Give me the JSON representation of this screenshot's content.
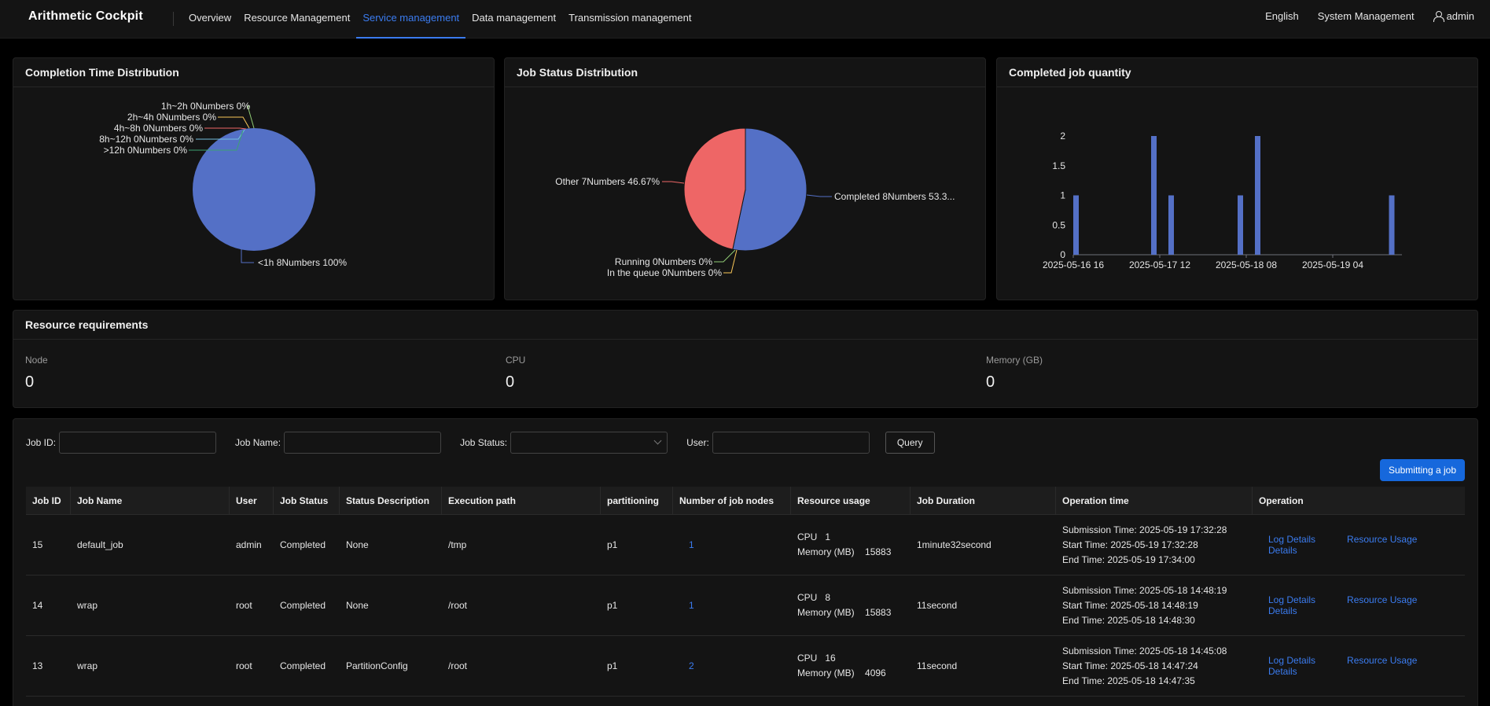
{
  "brand": "Arithmetic Cockpit",
  "nav": [
    {
      "label": "Overview",
      "active": false
    },
    {
      "label": "Resource Management",
      "active": false
    },
    {
      "label": "Service management",
      "active": true
    },
    {
      "label": "Data management",
      "active": false
    },
    {
      "label": "Transmission management",
      "active": false
    }
  ],
  "top_right": {
    "language": "English",
    "system": "System Management",
    "user": "admin",
    "user_icon": "user-icon"
  },
  "colors": {
    "accent": "#3b7cf0",
    "pie_blue": "#5470c6",
    "pie_red": "#ee6666",
    "pie_green": "#91cc75",
    "pie_yellow": "#fac858"
  },
  "completion_card": {
    "title": "Completion Time Distribution"
  },
  "status_card": {
    "title": "Job Status Distribution"
  },
  "quantity_card": {
    "title": "Completed job quantity"
  },
  "chart_data": [
    {
      "type": "pie",
      "title": "Completion Time Distribution",
      "slices": [
        {
          "label": "<1h 8Numbers 100%",
          "value": 8
        },
        {
          "label": "1h~2h 0Numbers 0%",
          "value": 0
        },
        {
          "label": "2h~4h 0Numbers 0%",
          "value": 0
        },
        {
          "label": "4h~8h 0Numbers 0%",
          "value": 0
        },
        {
          "label": "8h~12h 0Numbers 0%",
          "value": 0
        },
        {
          "label": ">12h 0Numbers 0%",
          "value": 0
        }
      ]
    },
    {
      "type": "pie",
      "title": "Job Status Distribution",
      "slices": [
        {
          "label": "Completed 8Numbers 53.3...",
          "value": 8
        },
        {
          "label": "Running 0Numbers 0%",
          "value": 0
        },
        {
          "label": "In the queue 0Numbers 0%",
          "value": 0
        },
        {
          "label": "Other 7Numbers 46.67%",
          "value": 7
        }
      ]
    },
    {
      "type": "bar",
      "title": "Completed job quantity",
      "xlabel": "",
      "ylabel": "",
      "xticks": [
        "2025-05-16 16",
        "2025-05-17 12",
        "2025-05-18 08",
        "2025-05-19 04"
      ],
      "yticks": [
        "0",
        "0.5",
        "1",
        "1.5",
        "2"
      ],
      "ylim": [
        0,
        2
      ],
      "x_range": [
        "2025-05-16 16:00",
        "2025-05-19 20:00"
      ],
      "bars": [
        {
          "x": "2025-05-16 16:00",
          "value": 1
        },
        {
          "x": "2025-05-17 10:00",
          "value": 2
        },
        {
          "x": "2025-05-17 14:00",
          "value": 1
        },
        {
          "x": "2025-05-18 06:00",
          "value": 1
        },
        {
          "x": "2025-05-18 10:00",
          "value": 2
        },
        {
          "x": "2025-05-19 17:00",
          "value": 1
        }
      ]
    }
  ],
  "resources": {
    "title": "Resource requirements",
    "items": [
      {
        "label": "Node",
        "value": "0"
      },
      {
        "label": "CPU",
        "value": "0"
      },
      {
        "label": "Memory (GB)",
        "value": "0"
      }
    ]
  },
  "filters": {
    "job_id_label": "Job ID",
    "job_name_label": "Job Name",
    "job_status_label": "Job Status",
    "user_label": "User",
    "query_label": "Query",
    "submit_label": "Submitting a job"
  },
  "table": {
    "headers": [
      "Job ID",
      "Job Name",
      "User",
      "Job Status",
      "Status Description",
      "Execution path",
      "partitioning",
      "Number of job nodes",
      "Resource usage",
      "Job Duration",
      "Operation time",
      "Operation"
    ],
    "cpu_label": "CPU",
    "mem_label": "Memory (MB)",
    "submission_prefix": "Submission Time: ",
    "start_prefix": "Start Time: ",
    "end_prefix": "End Time: ",
    "log_label": "Log Details",
    "usage_label": "Resource Usage Details",
    "rows": [
      {
        "id": "15",
        "name": "default_job",
        "user": "admin",
        "status": "Completed",
        "desc": "None",
        "path": "/tmp",
        "partition": "p1",
        "nodes": "1",
        "cpu": "1",
        "mem": "15883",
        "duration": "1minute32second",
        "submission": "2025-05-19 17:32:28",
        "start": "2025-05-19 17:32:28",
        "end": "2025-05-19 17:34:00"
      },
      {
        "id": "14",
        "name": "wrap",
        "user": "root",
        "status": "Completed",
        "desc": "None",
        "path": "/root",
        "partition": "p1",
        "nodes": "1",
        "cpu": "8",
        "mem": "15883",
        "duration": "11second",
        "submission": "2025-05-18 14:48:19",
        "start": "2025-05-18 14:48:19",
        "end": "2025-05-18 14:48:30"
      },
      {
        "id": "13",
        "name": "wrap",
        "user": "root",
        "status": "Completed",
        "desc": "PartitionConfig",
        "path": "/root",
        "partition": "p1",
        "nodes": "2",
        "cpu": "16",
        "mem": "4096",
        "duration": "11second",
        "submission": "2025-05-18 14:45:08",
        "start": "2025-05-18 14:47:24",
        "end": "2025-05-18 14:47:35"
      }
    ]
  }
}
